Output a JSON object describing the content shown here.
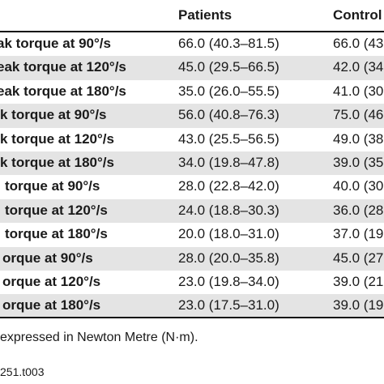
{
  "table": {
    "headers": {
      "patients": "Patients",
      "controls": "Control"
    },
    "rows": [
      {
        "label": "ak torque at 90°/s",
        "patients": "66.0 (40.3–81.5)",
        "controls": "66.0 (43"
      },
      {
        "label": "eak torque at 120°/s",
        "patients": "45.0 (29.5–66.5)",
        "controls": "42.0 (34"
      },
      {
        "label": "eak torque at 180°/s",
        "patients": "35.0 (26.0–55.5)",
        "controls": "41.0 (30"
      },
      {
        "label": "k torque at 90°/s",
        "patients": "56.0 (40.8–76.3)",
        "controls": "75.0 (46"
      },
      {
        "label": "k torque at 120°/s",
        "patients": "43.0 (25.5–56.5)",
        "controls": "49.0 (38"
      },
      {
        "label": "k torque at 180°/s",
        "patients": "34.0 (19.8–47.8)",
        "controls": "39.0 (35"
      },
      {
        "label": "torque at 90°/s",
        "patients": "28.0 (22.8–42.0)",
        "controls": "40.0 (30"
      },
      {
        "label": "torque at 120°/s",
        "patients": "24.0 (18.8–30.3)",
        "controls": "36.0 (28"
      },
      {
        "label": "torque at 180°/s",
        "patients": "20.0 (18.0–31.0)",
        "controls": "37.0 (19"
      },
      {
        "label": "orque at 90°/s",
        "patients": "28.0 (20.0–35.8)",
        "controls": "45.0 (27"
      },
      {
        "label": "orque at 120°/s",
        "patients": "23.0 (19.8–34.0)",
        "controls": "39.0 (21"
      },
      {
        "label": "orque at 180°/s",
        "patients": "23.0 (17.5–31.0)",
        "controls": "39.0 (19"
      }
    ]
  },
  "footnote": "expressed in Newton Metre (N·m).",
  "doi": "251.t003"
}
